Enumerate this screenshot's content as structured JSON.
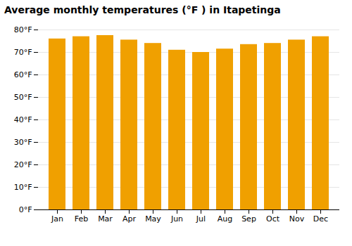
{
  "chart_data": {
    "type": "bar",
    "title": "Average monthly temperatures (°F ) in Itapetinga",
    "categories": [
      "Jan",
      "Feb",
      "Mar",
      "Apr",
      "May",
      "Jun",
      "Jul",
      "Aug",
      "Sep",
      "Oct",
      "Nov",
      "Dec"
    ],
    "values": [
      76,
      77,
      77.5,
      75.5,
      74,
      71,
      70,
      71.5,
      73.5,
      74,
      75.5,
      77
    ],
    "color": "#F0A000",
    "ylim": [
      0,
      80
    ],
    "yticks": [
      {
        "value": 0,
        "label": "0°F"
      },
      {
        "value": 10,
        "label": "10°F"
      },
      {
        "value": 20,
        "label": "20°F"
      },
      {
        "value": 30,
        "label": "30°F"
      },
      {
        "value": 40,
        "label": "40°F"
      },
      {
        "value": 50,
        "label": "50°F"
      },
      {
        "value": 60,
        "label": "60°F"
      },
      {
        "value": 70,
        "label": "70°F"
      },
      {
        "value": 80,
        "label": "80°F"
      }
    ],
    "grid": true
  }
}
